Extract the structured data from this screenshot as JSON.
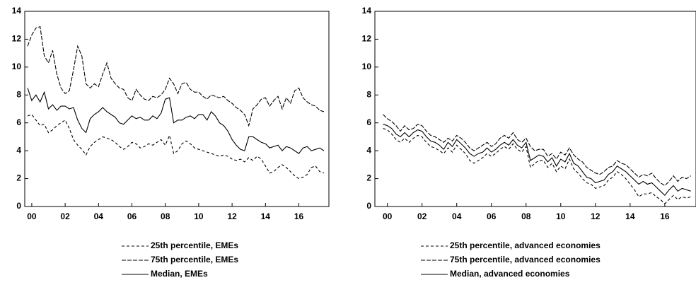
{
  "chart_data": [
    {
      "type": "line",
      "x": [
        -0.25,
        0,
        0.25,
        0.5,
        0.75,
        1,
        1.25,
        1.5,
        1.75,
        2,
        2.25,
        2.5,
        2.75,
        3,
        3.25,
        3.5,
        3.75,
        4,
        4.25,
        4.5,
        4.75,
        5,
        5.25,
        5.5,
        5.75,
        6,
        6.25,
        6.5,
        6.75,
        7,
        7.25,
        7.5,
        7.75,
        8,
        8.25,
        8.5,
        8.75,
        9,
        9.25,
        9.5,
        9.75,
        10,
        10.25,
        10.5,
        10.75,
        11,
        11.25,
        11.5,
        11.75,
        12,
        12.25,
        12.5,
        12.75,
        13,
        13.25,
        13.5,
        13.75,
        14,
        14.25,
        14.5,
        14.75,
        15,
        15.25,
        15.5,
        15.75,
        16,
        16.25,
        16.5,
        16.75,
        17,
        17.25,
        17.5
      ],
      "xlim": [
        -0.42,
        17.8
      ],
      "xticks": [
        {
          "value": 0,
          "label": "00"
        },
        {
          "value": 2,
          "label": "02"
        },
        {
          "value": 4,
          "label": "04"
        },
        {
          "value": 6,
          "label": "06"
        },
        {
          "value": 8,
          "label": "08"
        },
        {
          "value": 10,
          "label": "10"
        },
        {
          "value": 12,
          "label": "12"
        },
        {
          "value": 14,
          "label": "14"
        },
        {
          "value": 16,
          "label": "16"
        }
      ],
      "ylim": [
        0,
        14
      ],
      "yticks": [
        0,
        2,
        4,
        6,
        8,
        10,
        12,
        14
      ],
      "series": [
        {
          "name": "25th percentile, EMEs",
          "color": "#000000",
          "dash": "dashed",
          "values": [
            6.5,
            6.6,
            6.2,
            5.8,
            5.9,
            5.3,
            5.5,
            5.8,
            6,
            6.2,
            5.6,
            4.8,
            4.4,
            4.1,
            3.7,
            4.3,
            4.6,
            4.8,
            5,
            4.9,
            4.8,
            4.6,
            4.3,
            4.1,
            4.3,
            4.6,
            4.5,
            4.2,
            4.3,
            4.5,
            4.4,
            4.6,
            4.8,
            4.4,
            5.1,
            3.8,
            4,
            4.5,
            4.7,
            4.5,
            4.2,
            4.1,
            4,
            3.9,
            3.8,
            3.7,
            3.6,
            3.7,
            3.6,
            3.4,
            3.3,
            3.4,
            3.2,
            3.5,
            3.3,
            3.6,
            3.4,
            2.9,
            2.4,
            2.5,
            2.8,
            3,
            2.8,
            2.5,
            2.2,
            2,
            2.1,
            2.3,
            2.8,
            2.9,
            2.5,
            2.4
          ]
        },
        {
          "name": "75th percentile, EMEs",
          "color": "#000000",
          "dash": "dashed",
          "values": [
            11.5,
            12.3,
            12.8,
            12.9,
            10.8,
            10.3,
            11.2,
            9.5,
            8.5,
            8.1,
            8.3,
            9.8,
            11.5,
            10.8,
            8.8,
            8.5,
            8.8,
            8.6,
            9.5,
            10.3,
            9.2,
            8.8,
            8.5,
            8.4,
            7.8,
            7.6,
            8.4,
            8,
            7.7,
            7.6,
            7.9,
            7.8,
            8,
            8.4,
            9.2,
            8.8,
            8.1,
            8.8,
            8.9,
            8.4,
            8.2,
            8.2,
            7.9,
            7.7,
            8,
            7.9,
            7.8,
            7.9,
            7.6,
            7.4,
            7.1,
            6.9,
            6.6,
            5.8,
            7,
            7.3,
            7.7,
            7.8,
            7.2,
            7.6,
            7.9,
            7,
            7.8,
            7.4,
            8.3,
            8.5,
            7.8,
            7.5,
            7.3,
            7.2,
            6.9,
            6.8
          ]
        },
        {
          "name": "Median, EMEs",
          "color": "#000000",
          "dash": "solid",
          "values": [
            8.5,
            7.6,
            8,
            7.5,
            8.2,
            7,
            7.3,
            6.9,
            7.2,
            7.2,
            7,
            7.1,
            6.2,
            5.6,
            5.3,
            6.3,
            6.6,
            6.8,
            7.1,
            6.8,
            6.6,
            6.4,
            6,
            5.9,
            6.2,
            6.5,
            6.3,
            6.4,
            6.2,
            6.2,
            6.5,
            6.3,
            6.7,
            7.7,
            7.8,
            6,
            6.2,
            6.2,
            6.4,
            6.5,
            6.3,
            6.6,
            6.6,
            6.2,
            6.8,
            6.5,
            6,
            5.8,
            5.4,
            4.8,
            4.4,
            4.1,
            4,
            5,
            5,
            4.8,
            4.6,
            4.5,
            4.2,
            4.3,
            4.4,
            4,
            4.3,
            4.2,
            4,
            3.8,
            4.2,
            4.3,
            4,
            4.1,
            4.2,
            4
          ]
        }
      ]
    },
    {
      "type": "line",
      "x": [
        -0.25,
        0,
        0.25,
        0.5,
        0.75,
        1,
        1.25,
        1.5,
        1.75,
        2,
        2.25,
        2.5,
        2.75,
        3,
        3.25,
        3.5,
        3.75,
        4,
        4.25,
        4.5,
        4.75,
        5,
        5.25,
        5.5,
        5.75,
        6,
        6.25,
        6.5,
        6.75,
        7,
        7.25,
        7.5,
        7.75,
        8,
        8.25,
        8.5,
        8.75,
        9,
        9.25,
        9.5,
        9.75,
        10,
        10.25,
        10.5,
        10.75,
        11,
        11.25,
        11.5,
        11.75,
        12,
        12.25,
        12.5,
        12.75,
        13,
        13.25,
        13.5,
        13.75,
        14,
        14.25,
        14.5,
        14.75,
        15,
        15.25,
        15.5,
        15.75,
        16,
        16.25,
        16.5,
        16.75,
        17,
        17.25,
        17.5
      ],
      "xlim": [
        -0.72,
        17.8
      ],
      "xticks": [
        {
          "value": 0,
          "label": "00"
        },
        {
          "value": 2,
          "label": "02"
        },
        {
          "value": 4,
          "label": "04"
        },
        {
          "value": 6,
          "label": "06"
        },
        {
          "value": 8,
          "label": "08"
        },
        {
          "value": 10,
          "label": "10"
        },
        {
          "value": 12,
          "label": "12"
        },
        {
          "value": 14,
          "label": "14"
        },
        {
          "value": 16,
          "label": "16"
        }
      ],
      "ylim": [
        0,
        14
      ],
      "yticks": [
        0,
        2,
        4,
        6,
        8,
        10,
        12,
        14
      ],
      "series": [
        {
          "name": "25th percentile, advanced economies",
          "color": "#000000",
          "dash": "dashed",
          "values": [
            5.6,
            5.5,
            5.2,
            4.8,
            4.6,
            4.9,
            4.6,
            4.9,
            5.1,
            5,
            4.6,
            4.3,
            4.2,
            4,
            3.8,
            4.2,
            3.9,
            4.4,
            4.1,
            3.8,
            3.3,
            3.1,
            3.3,
            3.5,
            3.8,
            3.6,
            3.8,
            4.1,
            4.3,
            4.1,
            4.5,
            4.1,
            3.9,
            4.3,
            2.8,
            3.1,
            3.3,
            3.3,
            2.8,
            3.1,
            2.5,
            2.9,
            2.7,
            3.4,
            2.7,
            2.4,
            2,
            1.7,
            1.6,
            1.3,
            1.4,
            1.5,
            1.9,
            2.1,
            2.5,
            2.3,
            2,
            1.6,
            1.2,
            0.7,
            0.9,
            0.9,
            1,
            0.7,
            0.5,
            0.2,
            0.5,
            0.8,
            0.5,
            0.7,
            0.6,
            0.7
          ]
        },
        {
          "name": "75th percentile, advanced economies",
          "color": "#000000",
          "dash": "dashed",
          "values": [
            6.6,
            6.3,
            6.1,
            5.8,
            5.4,
            5.8,
            5.5,
            5.6,
            5.9,
            5.8,
            5.4,
            5.1,
            5,
            4.8,
            4.6,
            4.9,
            4.7,
            5.1,
            4.9,
            4.6,
            4.2,
            4,
            4.2,
            4.4,
            4.6,
            4.3,
            4.5,
            4.9,
            5.1,
            4.9,
            5.3,
            4.8,
            4.6,
            4.9,
            4.3,
            4,
            4.1,
            4.1,
            3.6,
            3.8,
            3.4,
            3.9,
            3.7,
            4.2,
            3.7,
            3.4,
            3.2,
            2.8,
            2.6,
            2.4,
            2.3,
            2.5,
            2.8,
            2.9,
            3.3,
            3.1,
            3,
            2.7,
            2.4,
            2.1,
            2.3,
            2.2,
            2.4,
            2,
            1.7,
            1.5,
            1.8,
            2.2,
            1.8,
            2.1,
            2,
            2.2
          ]
        },
        {
          "name": "Median, advanced economies",
          "color": "#000000",
          "dash": "solid",
          "values": [
            5.9,
            5.8,
            5.6,
            5.2,
            5,
            5.3,
            5,
            5.3,
            5.5,
            5.4,
            5,
            4.7,
            4.6,
            4.4,
            4.1,
            4.6,
            4.3,
            4.8,
            4.5,
            4.2,
            3.8,
            3.6,
            3.8,
            3.9,
            4.2,
            3.9,
            4.1,
            4.4,
            4.6,
            4.4,
            4.8,
            4.4,
            4.2,
            4.6,
            3.3,
            3.5,
            3.7,
            3.6,
            3.2,
            3.5,
            2.9,
            3.4,
            3.2,
            3.8,
            3.1,
            2.9,
            2.5,
            2.1,
            2,
            1.7,
            1.8,
            1.9,
            2.3,
            2.5,
            2.9,
            2.7,
            2.5,
            2.2,
            1.9,
            1.6,
            1.8,
            1.6,
            1.7,
            1.4,
            1.1,
            0.8,
            1.2,
            1.5,
            1.1,
            1.3,
            1.2,
            1.1
          ]
        }
      ]
    }
  ]
}
